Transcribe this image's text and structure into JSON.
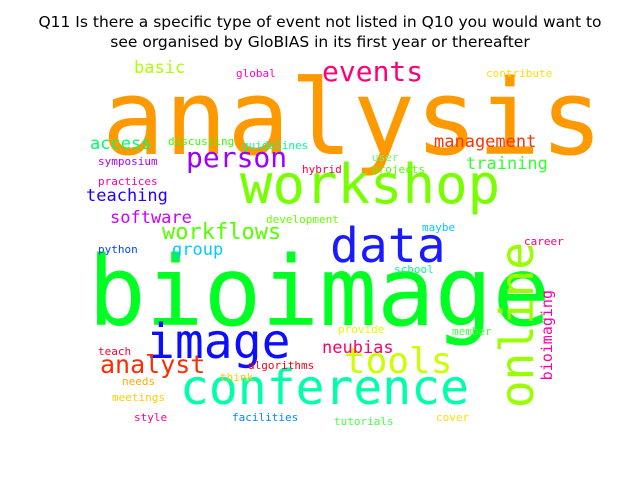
{
  "title_line1": "Q11 Is there a specific type of event not listed in Q10 you would want to",
  "title_line2": "see organised by GloBIAS in its first year or thereafter",
  "words": [
    {
      "text": "analysis",
      "color": "#ff9900"
    },
    {
      "text": "bioimage",
      "color": "#00ff22"
    },
    {
      "text": "workshop",
      "color": "#77ff00"
    },
    {
      "text": "data",
      "color": "#1a1aff"
    },
    {
      "text": "conference",
      "color": "#00ffaa"
    },
    {
      "text": "image",
      "color": "#0d0dff"
    },
    {
      "text": "online",
      "color": "#99ff00"
    },
    {
      "text": "tools",
      "color": "#ccff00"
    },
    {
      "text": "person",
      "color": "#9900ff"
    },
    {
      "text": "events",
      "color": "#ff0077"
    },
    {
      "text": "analyst",
      "color": "#ff2a00"
    },
    {
      "text": "workflows",
      "color": "#55ff00"
    },
    {
      "text": "management",
      "color": "#ff3300"
    },
    {
      "text": "training",
      "color": "#33ff33"
    },
    {
      "text": "teaching",
      "color": "#2200ff"
    },
    {
      "text": "software",
      "color": "#cc00ff"
    },
    {
      "text": "access",
      "color": "#00ff66"
    },
    {
      "text": "basic",
      "color": "#aaff00"
    },
    {
      "text": "group",
      "color": "#00ccff"
    },
    {
      "text": "neubias",
      "color": "#ff0066"
    },
    {
      "text": "bioimaging",
      "color": "#ff00aa"
    },
    {
      "text": "global",
      "color": "#ff00cc"
    },
    {
      "text": "contribute",
      "color": "#ffdd00"
    },
    {
      "text": "discussing",
      "color": "#33ff00"
    },
    {
      "text": "guidelines",
      "color": "#00ff99"
    },
    {
      "text": "symposium",
      "color": "#aa00ff"
    },
    {
      "text": "hybrid",
      "color": "#ff0044"
    },
    {
      "text": "user",
      "color": "#66ff66"
    },
    {
      "text": "projects",
      "color": "#55ff00"
    },
    {
      "text": "practices",
      "color": "#ff0099"
    },
    {
      "text": "development",
      "color": "#66ff00"
    },
    {
      "text": "maybe",
      "color": "#00ccff"
    },
    {
      "text": "career",
      "color": "#ff0066"
    },
    {
      "text": "python",
      "color": "#0044ff"
    },
    {
      "text": "school",
      "color": "#00ff88"
    },
    {
      "text": "provide",
      "color": "#ddff00"
    },
    {
      "text": "member",
      "color": "#44ff44"
    },
    {
      "text": "teach",
      "color": "#ff0033"
    },
    {
      "text": "algorithms",
      "color": "#ff0011"
    },
    {
      "text": "needs",
      "color": "#ffaa00"
    },
    {
      "text": "think",
      "color": "#ffcc00"
    },
    {
      "text": "meetings",
      "color": "#ffcc00"
    },
    {
      "text": "style",
      "color": "#ff0088"
    },
    {
      "text": "facilities",
      "color": "#0088ff"
    },
    {
      "text": "tutorials",
      "color": "#44ff44"
    },
    {
      "text": "cover",
      "color": "#ffdd00"
    }
  ]
}
